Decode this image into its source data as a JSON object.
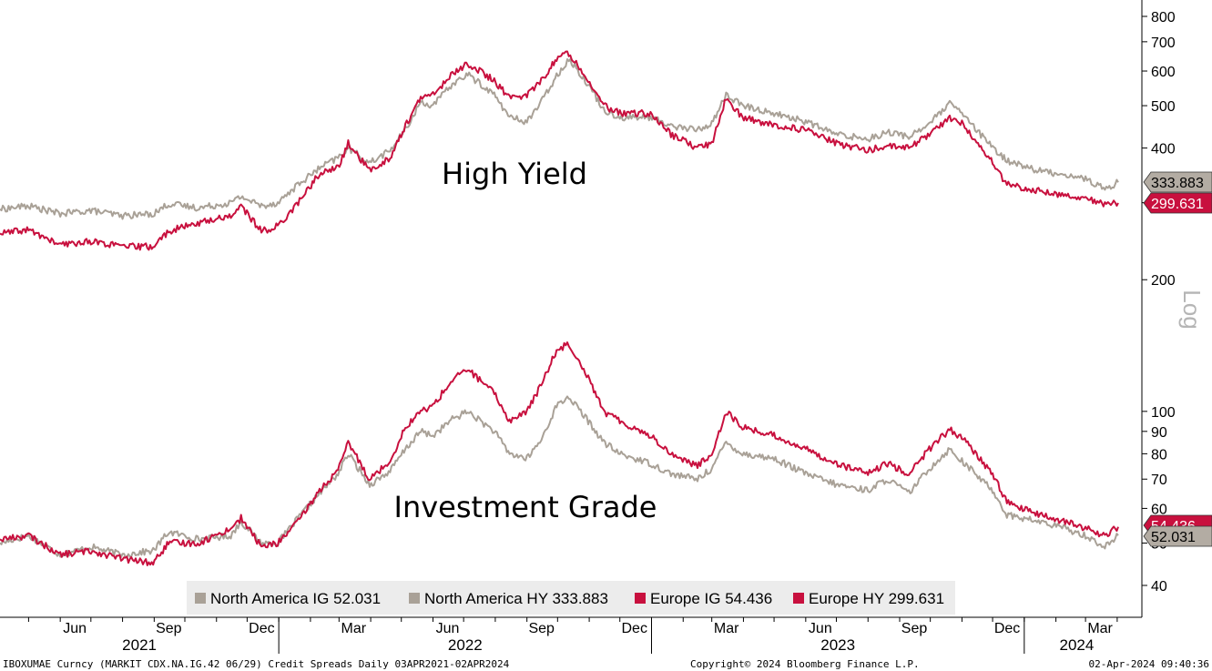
{
  "chart_data": {
    "type": "line",
    "scale": "log",
    "ylim": [
      36,
      860
    ],
    "y_ticks": [
      40,
      50,
      60,
      70,
      80,
      90,
      100,
      200,
      400,
      500,
      600,
      700,
      800
    ],
    "y_axis_side": "right",
    "y_axis_note": "Log",
    "x_month_labels": [
      "Jun",
      "Sep",
      "Dec",
      "Mar",
      "Jun",
      "Sep",
      "Dec",
      "Mar",
      "Jun",
      "Sep",
      "Dec",
      "Mar"
    ],
    "x_year_labels": [
      "2021",
      "2022",
      "2023",
      "2024"
    ],
    "annotations": [
      "High Yield",
      "Investment Grade"
    ],
    "legend_position": "bottom-center",
    "grid": false,
    "series": [
      {
        "name": "North America IG 52.031",
        "color": "#a9a197",
        "last_value_label": "52.031",
        "points": [
          [
            "2021-04-03",
            50
          ],
          [
            "2021-05-01",
            52
          ],
          [
            "2021-06-01",
            47
          ],
          [
            "2021-07-01",
            49
          ],
          [
            "2021-08-01",
            47
          ],
          [
            "2021-08-31",
            48
          ],
          [
            "2021-09-15",
            53
          ],
          [
            "2021-10-15",
            51
          ],
          [
            "2021-11-15",
            52
          ],
          [
            "2021-11-25",
            56
          ],
          [
            "2021-12-15",
            50
          ],
          [
            "2021-12-31",
            50
          ],
          [
            "2022-01-20",
            57
          ],
          [
            "2022-02-10",
            65
          ],
          [
            "2022-02-28",
            72
          ],
          [
            "2022-03-10",
            80
          ],
          [
            "2022-03-31",
            68
          ],
          [
            "2022-04-20",
            73
          ],
          [
            "2022-05-05",
            82
          ],
          [
            "2022-05-20",
            90
          ],
          [
            "2022-06-01",
            88
          ],
          [
            "2022-06-20",
            96
          ],
          [
            "2022-07-05",
            100
          ],
          [
            "2022-07-31",
            90
          ],
          [
            "2022-08-15",
            80
          ],
          [
            "2022-09-01",
            78
          ],
          [
            "2022-09-15",
            86
          ],
          [
            "2022-09-30",
            103
          ],
          [
            "2022-10-12",
            108
          ],
          [
            "2022-10-31",
            95
          ],
          [
            "2022-11-15",
            85
          ],
          [
            "2022-12-01",
            80
          ],
          [
            "2022-12-31",
            76
          ],
          [
            "2023-01-20",
            72
          ],
          [
            "2023-02-15",
            70
          ],
          [
            "2023-03-01",
            74
          ],
          [
            "2023-03-15",
            85
          ],
          [
            "2023-03-31",
            80
          ],
          [
            "2023-05-01",
            78
          ],
          [
            "2023-06-01",
            72
          ],
          [
            "2023-07-01",
            68
          ],
          [
            "2023-08-01",
            66
          ],
          [
            "2023-08-20",
            70
          ],
          [
            "2023-09-10",
            65
          ],
          [
            "2023-09-30",
            74
          ],
          [
            "2023-10-20",
            82
          ],
          [
            "2023-11-01",
            77
          ],
          [
            "2023-12-01",
            66
          ],
          [
            "2023-12-15",
            58
          ],
          [
            "2024-01-15",
            56
          ],
          [
            "2024-02-10",
            54
          ],
          [
            "2024-03-01",
            52
          ],
          [
            "2024-03-20",
            49
          ],
          [
            "2024-04-02",
            52.031
          ]
        ]
      },
      {
        "name": "North America HY 333.883",
        "color": "#a9a197",
        "last_value_label": "333.883",
        "points": [
          [
            "2021-04-03",
            290
          ],
          [
            "2021-05-01",
            295
          ],
          [
            "2021-06-01",
            283
          ],
          [
            "2021-07-01",
            288
          ],
          [
            "2021-08-01",
            280
          ],
          [
            "2021-08-31",
            283
          ],
          [
            "2021-09-15",
            298
          ],
          [
            "2021-10-15",
            292
          ],
          [
            "2021-11-15",
            300
          ],
          [
            "2021-11-25",
            310
          ],
          [
            "2021-12-15",
            295
          ],
          [
            "2021-12-31",
            300
          ],
          [
            "2022-01-20",
            330
          ],
          [
            "2022-02-10",
            360
          ],
          [
            "2022-02-28",
            380
          ],
          [
            "2022-03-10",
            400
          ],
          [
            "2022-03-31",
            370
          ],
          [
            "2022-04-20",
            395
          ],
          [
            "2022-05-05",
            440
          ],
          [
            "2022-05-20",
            510
          ],
          [
            "2022-06-01",
            500
          ],
          [
            "2022-06-20",
            560
          ],
          [
            "2022-07-05",
            590
          ],
          [
            "2022-07-31",
            530
          ],
          [
            "2022-08-15",
            470
          ],
          [
            "2022-09-01",
            460
          ],
          [
            "2022-09-15",
            510
          ],
          [
            "2022-09-30",
            585
          ],
          [
            "2022-10-12",
            640
          ],
          [
            "2022-10-31",
            560
          ],
          [
            "2022-11-15",
            490
          ],
          [
            "2022-12-01",
            470
          ],
          [
            "2022-12-31",
            470
          ],
          [
            "2023-01-20",
            450
          ],
          [
            "2023-02-15",
            440
          ],
          [
            "2023-03-01",
            455
          ],
          [
            "2023-03-15",
            530
          ],
          [
            "2023-03-31",
            500
          ],
          [
            "2023-05-01",
            480
          ],
          [
            "2023-06-01",
            460
          ],
          [
            "2023-07-01",
            430
          ],
          [
            "2023-08-01",
            420
          ],
          [
            "2023-08-20",
            435
          ],
          [
            "2023-09-10",
            425
          ],
          [
            "2023-09-30",
            455
          ],
          [
            "2023-10-20",
            505
          ],
          [
            "2023-11-01",
            480
          ],
          [
            "2023-12-01",
            400
          ],
          [
            "2023-12-15",
            375
          ],
          [
            "2024-01-15",
            355
          ],
          [
            "2024-02-10",
            348
          ],
          [
            "2024-03-01",
            340
          ],
          [
            "2024-03-20",
            322
          ],
          [
            "2024-04-02",
            333.883
          ]
        ]
      },
      {
        "name": "Europe IG 54.436",
        "color": "#c8103e",
        "last_value_label": "54.436",
        "points": [
          [
            "2021-04-03",
            51
          ],
          [
            "2021-05-01",
            52
          ],
          [
            "2021-06-01",
            47
          ],
          [
            "2021-07-01",
            48
          ],
          [
            "2021-08-01",
            46
          ],
          [
            "2021-08-31",
            45
          ],
          [
            "2021-09-15",
            50
          ],
          [
            "2021-10-15",
            50
          ],
          [
            "2021-11-15",
            54
          ],
          [
            "2021-11-25",
            57
          ],
          [
            "2021-12-15",
            49
          ],
          [
            "2021-12-31",
            50
          ],
          [
            "2022-01-20",
            56
          ],
          [
            "2022-02-10",
            66
          ],
          [
            "2022-02-28",
            73
          ],
          [
            "2022-03-10",
            85
          ],
          [
            "2022-03-31",
            70
          ],
          [
            "2022-04-20",
            77
          ],
          [
            "2022-05-05",
            92
          ],
          [
            "2022-05-20",
            100
          ],
          [
            "2022-06-01",
            103
          ],
          [
            "2022-06-20",
            118
          ],
          [
            "2022-07-05",
            125
          ],
          [
            "2022-07-31",
            110
          ],
          [
            "2022-08-15",
            95
          ],
          [
            "2022-09-01",
            100
          ],
          [
            "2022-09-15",
            115
          ],
          [
            "2022-09-30",
            138
          ],
          [
            "2022-10-12",
            143
          ],
          [
            "2022-10-31",
            120
          ],
          [
            "2022-11-15",
            100
          ],
          [
            "2022-12-01",
            95
          ],
          [
            "2022-12-31",
            88
          ],
          [
            "2023-01-20",
            80
          ],
          [
            "2023-02-15",
            75
          ],
          [
            "2023-03-01",
            80
          ],
          [
            "2023-03-15",
            100
          ],
          [
            "2023-03-31",
            92
          ],
          [
            "2023-05-01",
            88
          ],
          [
            "2023-06-01",
            82
          ],
          [
            "2023-07-01",
            76
          ],
          [
            "2023-08-01",
            72
          ],
          [
            "2023-08-20",
            76
          ],
          [
            "2023-09-10",
            72
          ],
          [
            "2023-09-30",
            82
          ],
          [
            "2023-10-20",
            91
          ],
          [
            "2023-11-01",
            87
          ],
          [
            "2023-12-01",
            72
          ],
          [
            "2023-12-15",
            62
          ],
          [
            "2024-01-15",
            58
          ],
          [
            "2024-02-10",
            56
          ],
          [
            "2024-03-01",
            54
          ],
          [
            "2024-03-20",
            52
          ],
          [
            "2024-04-02",
            54.436
          ]
        ]
      },
      {
        "name": "Europe HY 299.631",
        "color": "#c8103e",
        "last_value_label": "299.631",
        "points": [
          [
            "2021-04-03",
            255
          ],
          [
            "2021-05-01",
            260
          ],
          [
            "2021-06-01",
            240
          ],
          [
            "2021-07-01",
            245
          ],
          [
            "2021-08-01",
            238
          ],
          [
            "2021-08-31",
            238
          ],
          [
            "2021-09-15",
            258
          ],
          [
            "2021-10-15",
            270
          ],
          [
            "2021-11-15",
            280
          ],
          [
            "2021-11-25",
            295
          ],
          [
            "2021-12-15",
            258
          ],
          [
            "2021-12-31",
            265
          ],
          [
            "2022-01-20",
            300
          ],
          [
            "2022-02-10",
            350
          ],
          [
            "2022-02-28",
            360
          ],
          [
            "2022-03-10",
            410
          ],
          [
            "2022-03-31",
            355
          ],
          [
            "2022-04-20",
            380
          ],
          [
            "2022-05-05",
            450
          ],
          [
            "2022-05-20",
            520
          ],
          [
            "2022-06-01",
            530
          ],
          [
            "2022-06-20",
            590
          ],
          [
            "2022-07-05",
            625
          ],
          [
            "2022-07-31",
            570
          ],
          [
            "2022-08-15",
            520
          ],
          [
            "2022-09-01",
            530
          ],
          [
            "2022-09-15",
            570
          ],
          [
            "2022-09-30",
            640
          ],
          [
            "2022-10-12",
            660
          ],
          [
            "2022-10-31",
            575
          ],
          [
            "2022-11-15",
            500
          ],
          [
            "2022-12-01",
            480
          ],
          [
            "2022-12-31",
            480
          ],
          [
            "2023-01-20",
            430
          ],
          [
            "2023-02-15",
            400
          ],
          [
            "2023-03-01",
            410
          ],
          [
            "2023-03-15",
            520
          ],
          [
            "2023-03-31",
            470
          ],
          [
            "2023-05-01",
            450
          ],
          [
            "2023-06-01",
            440
          ],
          [
            "2023-07-01",
            410
          ],
          [
            "2023-08-01",
            395
          ],
          [
            "2023-08-20",
            405
          ],
          [
            "2023-09-10",
            400
          ],
          [
            "2023-09-30",
            430
          ],
          [
            "2023-10-20",
            470
          ],
          [
            "2023-11-01",
            455
          ],
          [
            "2023-12-01",
            370
          ],
          [
            "2023-12-15",
            330
          ],
          [
            "2024-01-15",
            320
          ],
          [
            "2024-02-10",
            312
          ],
          [
            "2024-03-01",
            308
          ],
          [
            "2024-03-20",
            298
          ],
          [
            "2024-04-02",
            299.631
          ]
        ]
      }
    ]
  },
  "footer": {
    "left": "IBOXUMAE Curncy (MARKIT CDX.NA.IG.42 06/29) Credit Spreads  Daily 03APR2021-02APR2024",
    "center": "Copyright© 2024 Bloomberg Finance L.P.",
    "right": "02-Apr-2024 09:40:36"
  }
}
